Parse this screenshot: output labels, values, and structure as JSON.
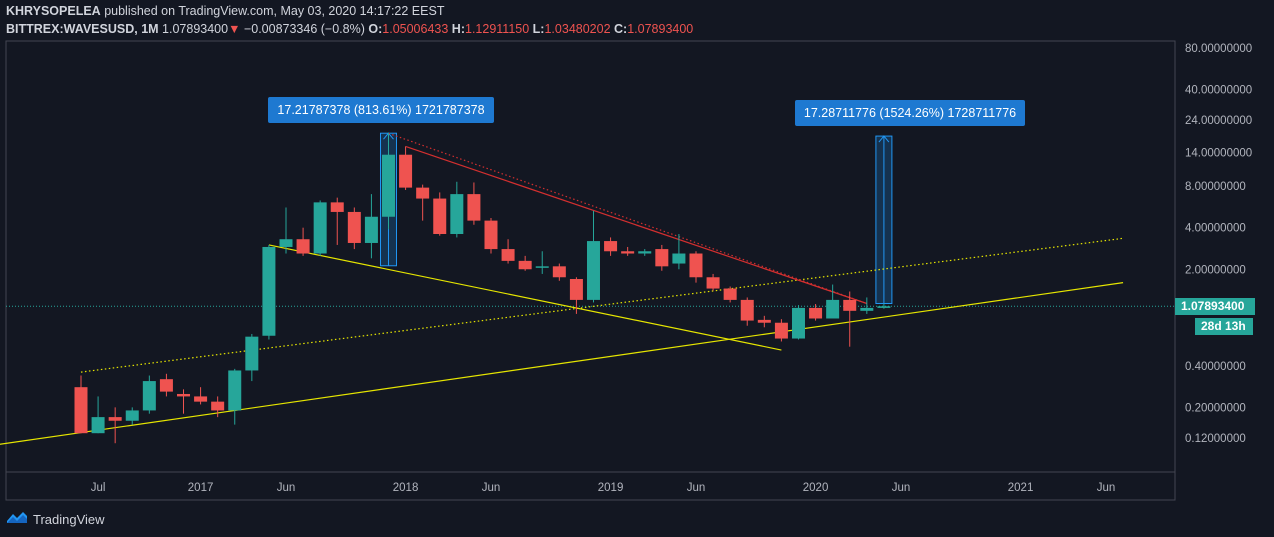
{
  "header": {
    "author": "KHRYSOPELEA",
    "published": "published on TradingView.com, May 03, 2020 14:17:22 EEST",
    "symbol": "BITTREX:WAVESUSD, 1M",
    "last": "1.07893400",
    "arrow": "▼",
    "change": "−0.00873346 (−0.8%)",
    "o_label": "O:",
    "o_value": "1.05006433",
    "h_label": "H:",
    "h_value": "1.12911150",
    "l_label": "L:",
    "l_value": "1.03480202",
    "c_label": "C:",
    "c_value": "1.07893400"
  },
  "footer": {
    "brand": "TradingView",
    "logo_icon": "tradingview-logo-icon"
  },
  "price_labels": {
    "current": "1.07893400",
    "countdown": "28d 13h"
  },
  "annotations": [
    {
      "text": "17.21787378 (813.61%) 1721787378"
    },
    {
      "text": "17.28711776 (1524.26%) 1728711776"
    }
  ],
  "colors": {
    "up": "#26a69a",
    "down": "#ef5350",
    "background": "#131722",
    "trend": "#e6e600",
    "resistance": "#d32f2f",
    "annotation": "#1e79d1",
    "measure": "#2196f3"
  },
  "chart_data": {
    "type": "candlestick",
    "symbol": "BITTREX:WAVESUSD",
    "interval": "1M",
    "y_scale": "log",
    "ylim": [
      0.075,
      90
    ],
    "y_ticks": [
      "80.00000000",
      "40.00000000",
      "24.00000000",
      "14.00000000",
      "8.00000000",
      "4.00000000",
      "2.00000000",
      "0.40000000",
      "0.20000000",
      "0.12000000"
    ],
    "x_labels": [
      "Jul",
      "2017",
      "Jun",
      "2018",
      "Jun",
      "2019",
      "Jun",
      "2020",
      "Jun",
      "2021",
      "Jun"
    ],
    "x_label_dates": [
      "2016-07",
      "2017-01",
      "2017-06",
      "2018-01",
      "2018-06",
      "2019-01",
      "2019-06",
      "2020-01",
      "2020-06",
      "2021-01",
      "2021-06"
    ],
    "candles": [
      {
        "date": "2016-06",
        "o": 0.28,
        "h": 0.34,
        "l": 0.13,
        "c": 0.13
      },
      {
        "date": "2016-07",
        "o": 0.13,
        "h": 0.24,
        "l": 0.13,
        "c": 0.17
      },
      {
        "date": "2016-08",
        "o": 0.17,
        "h": 0.2,
        "l": 0.11,
        "c": 0.16
      },
      {
        "date": "2016-09",
        "o": 0.16,
        "h": 0.2,
        "l": 0.15,
        "c": 0.19
      },
      {
        "date": "2016-10",
        "o": 0.19,
        "h": 0.34,
        "l": 0.18,
        "c": 0.31
      },
      {
        "date": "2016-11",
        "o": 0.32,
        "h": 0.35,
        "l": 0.24,
        "c": 0.26
      },
      {
        "date": "2016-12",
        "o": 0.25,
        "h": 0.27,
        "l": 0.18,
        "c": 0.24
      },
      {
        "date": "2017-01",
        "o": 0.24,
        "h": 0.28,
        "l": 0.21,
        "c": 0.22
      },
      {
        "date": "2017-02",
        "o": 0.22,
        "h": 0.24,
        "l": 0.17,
        "c": 0.19
      },
      {
        "date": "2017-03",
        "o": 0.19,
        "h": 0.38,
        "l": 0.15,
        "c": 0.37
      },
      {
        "date": "2017-04",
        "o": 0.37,
        "h": 0.68,
        "l": 0.31,
        "c": 0.65
      },
      {
        "date": "2017-05",
        "o": 0.66,
        "h": 3.0,
        "l": 0.62,
        "c": 2.9
      },
      {
        "date": "2017-06",
        "o": 2.9,
        "h": 5.6,
        "l": 2.6,
        "c": 3.3
      },
      {
        "date": "2017-07",
        "o": 3.3,
        "h": 4.0,
        "l": 2.5,
        "c": 2.6
      },
      {
        "date": "2017-08",
        "o": 2.6,
        "h": 6.3,
        "l": 2.5,
        "c": 6.1
      },
      {
        "date": "2017-09",
        "o": 6.1,
        "h": 6.6,
        "l": 3.0,
        "c": 5.2
      },
      {
        "date": "2017-10",
        "o": 5.2,
        "h": 5.6,
        "l": 2.8,
        "c": 3.1
      },
      {
        "date": "2017-11",
        "o": 3.1,
        "h": 7.0,
        "l": 2.4,
        "c": 4.8
      },
      {
        "date": "2017-12",
        "o": 4.8,
        "h": 19.5,
        "l": 3.9,
        "c": 13.5
      },
      {
        "date": "2018-01",
        "o": 13.5,
        "h": 15.5,
        "l": 7.5,
        "c": 7.8
      },
      {
        "date": "2018-02",
        "o": 7.8,
        "h": 8.2,
        "l": 4.5,
        "c": 6.5
      },
      {
        "date": "2018-03",
        "o": 6.5,
        "h": 7.2,
        "l": 3.5,
        "c": 3.6
      },
      {
        "date": "2018-04",
        "o": 3.6,
        "h": 8.6,
        "l": 3.4,
        "c": 7.0
      },
      {
        "date": "2018-05",
        "o": 7.0,
        "h": 8.5,
        "l": 4.2,
        "c": 4.5
      },
      {
        "date": "2018-06",
        "o": 4.5,
        "h": 4.7,
        "l": 2.6,
        "c": 2.8
      },
      {
        "date": "2018-07",
        "o": 2.8,
        "h": 3.3,
        "l": 2.2,
        "c": 2.3
      },
      {
        "date": "2018-08",
        "o": 2.3,
        "h": 2.5,
        "l": 1.95,
        "c": 2.0
      },
      {
        "date": "2018-09",
        "o": 2.1,
        "h": 2.7,
        "l": 1.85,
        "c": 2.1
      },
      {
        "date": "2018-10",
        "o": 2.1,
        "h": 2.2,
        "l": 1.65,
        "c": 1.75
      },
      {
        "date": "2018-11",
        "o": 1.7,
        "h": 1.75,
        "l": 0.95,
        "c": 1.2
      },
      {
        "date": "2018-12",
        "o": 1.2,
        "h": 5.3,
        "l": 1.15,
        "c": 3.2
      },
      {
        "date": "2019-01",
        "o": 3.2,
        "h": 3.4,
        "l": 2.5,
        "c": 2.7
      },
      {
        "date": "2019-02",
        "o": 2.7,
        "h": 2.9,
        "l": 2.5,
        "c": 2.6
      },
      {
        "date": "2019-03",
        "o": 2.6,
        "h": 2.8,
        "l": 2.5,
        "c": 2.7
      },
      {
        "date": "2019-04",
        "o": 2.8,
        "h": 3.0,
        "l": 1.95,
        "c": 2.1
      },
      {
        "date": "2019-05",
        "o": 2.2,
        "h": 3.6,
        "l": 2.0,
        "c": 2.6
      },
      {
        "date": "2019-06",
        "o": 2.6,
        "h": 2.7,
        "l": 1.6,
        "c": 1.75
      },
      {
        "date": "2019-07",
        "o": 1.75,
        "h": 1.85,
        "l": 1.4,
        "c": 1.45
      },
      {
        "date": "2019-08",
        "o": 1.45,
        "h": 1.5,
        "l": 1.15,
        "c": 1.2
      },
      {
        "date": "2019-09",
        "o": 1.2,
        "h": 1.25,
        "l": 0.78,
        "c": 0.85
      },
      {
        "date": "2019-10",
        "o": 0.86,
        "h": 0.92,
        "l": 0.76,
        "c": 0.82
      },
      {
        "date": "2019-11",
        "o": 0.82,
        "h": 0.87,
        "l": 0.6,
        "c": 0.63
      },
      {
        "date": "2019-12",
        "o": 0.63,
        "h": 1.1,
        "l": 0.62,
        "c": 1.05
      },
      {
        "date": "2020-01",
        "o": 1.05,
        "h": 1.12,
        "l": 0.85,
        "c": 0.88
      },
      {
        "date": "2020-02",
        "o": 0.88,
        "h": 1.55,
        "l": 0.88,
        "c": 1.2
      },
      {
        "date": "2020-03",
        "o": 1.2,
        "h": 1.38,
        "l": 0.55,
        "c": 1.0
      },
      {
        "date": "2020-04",
        "o": 1.0,
        "h": 1.25,
        "l": 0.95,
        "c": 1.05
      },
      {
        "date": "2020-05",
        "o": 1.05006433,
        "h": 1.1291115,
        "l": 1.03480202,
        "c": 1.078934
      }
    ],
    "last_price": 1.078934,
    "measures": [
      {
        "date": "2017-12",
        "from": 2.12,
        "to": 19.33,
        "label": "17.21787378 (813.61%) 1721787378"
      },
      {
        "date": "2020-05",
        "from": 1.13,
        "to": 18.42,
        "label": "17.28711776 (1524.26%) 1728711776"
      }
    ],
    "trend_lines": [
      {
        "style": "solid",
        "color": "#e6e600",
        "from": [
          "2016-01",
          0.107
        ],
        "to": [
          "2021-07",
          1.6
        ]
      },
      {
        "style": "solid",
        "color": "#e6e600",
        "from": [
          "2017-05",
          3.0
        ],
        "to": [
          "2019-11",
          0.52
        ]
      },
      {
        "style": "dotted",
        "color": "#e6e600",
        "from": [
          "2016-06",
          0.36
        ],
        "to": [
          "2021-07",
          3.35
        ]
      },
      {
        "style": "solid",
        "color": "#d32f2f",
        "from": [
          "2018-01",
          15.5
        ],
        "to": [
          "2020-04",
          1.13
        ]
      },
      {
        "style": "dotted",
        "color": "#d32f2f",
        "from": [
          "2017-12",
          19.3
        ],
        "to": [
          "2020-04",
          1.13
        ]
      }
    ]
  }
}
